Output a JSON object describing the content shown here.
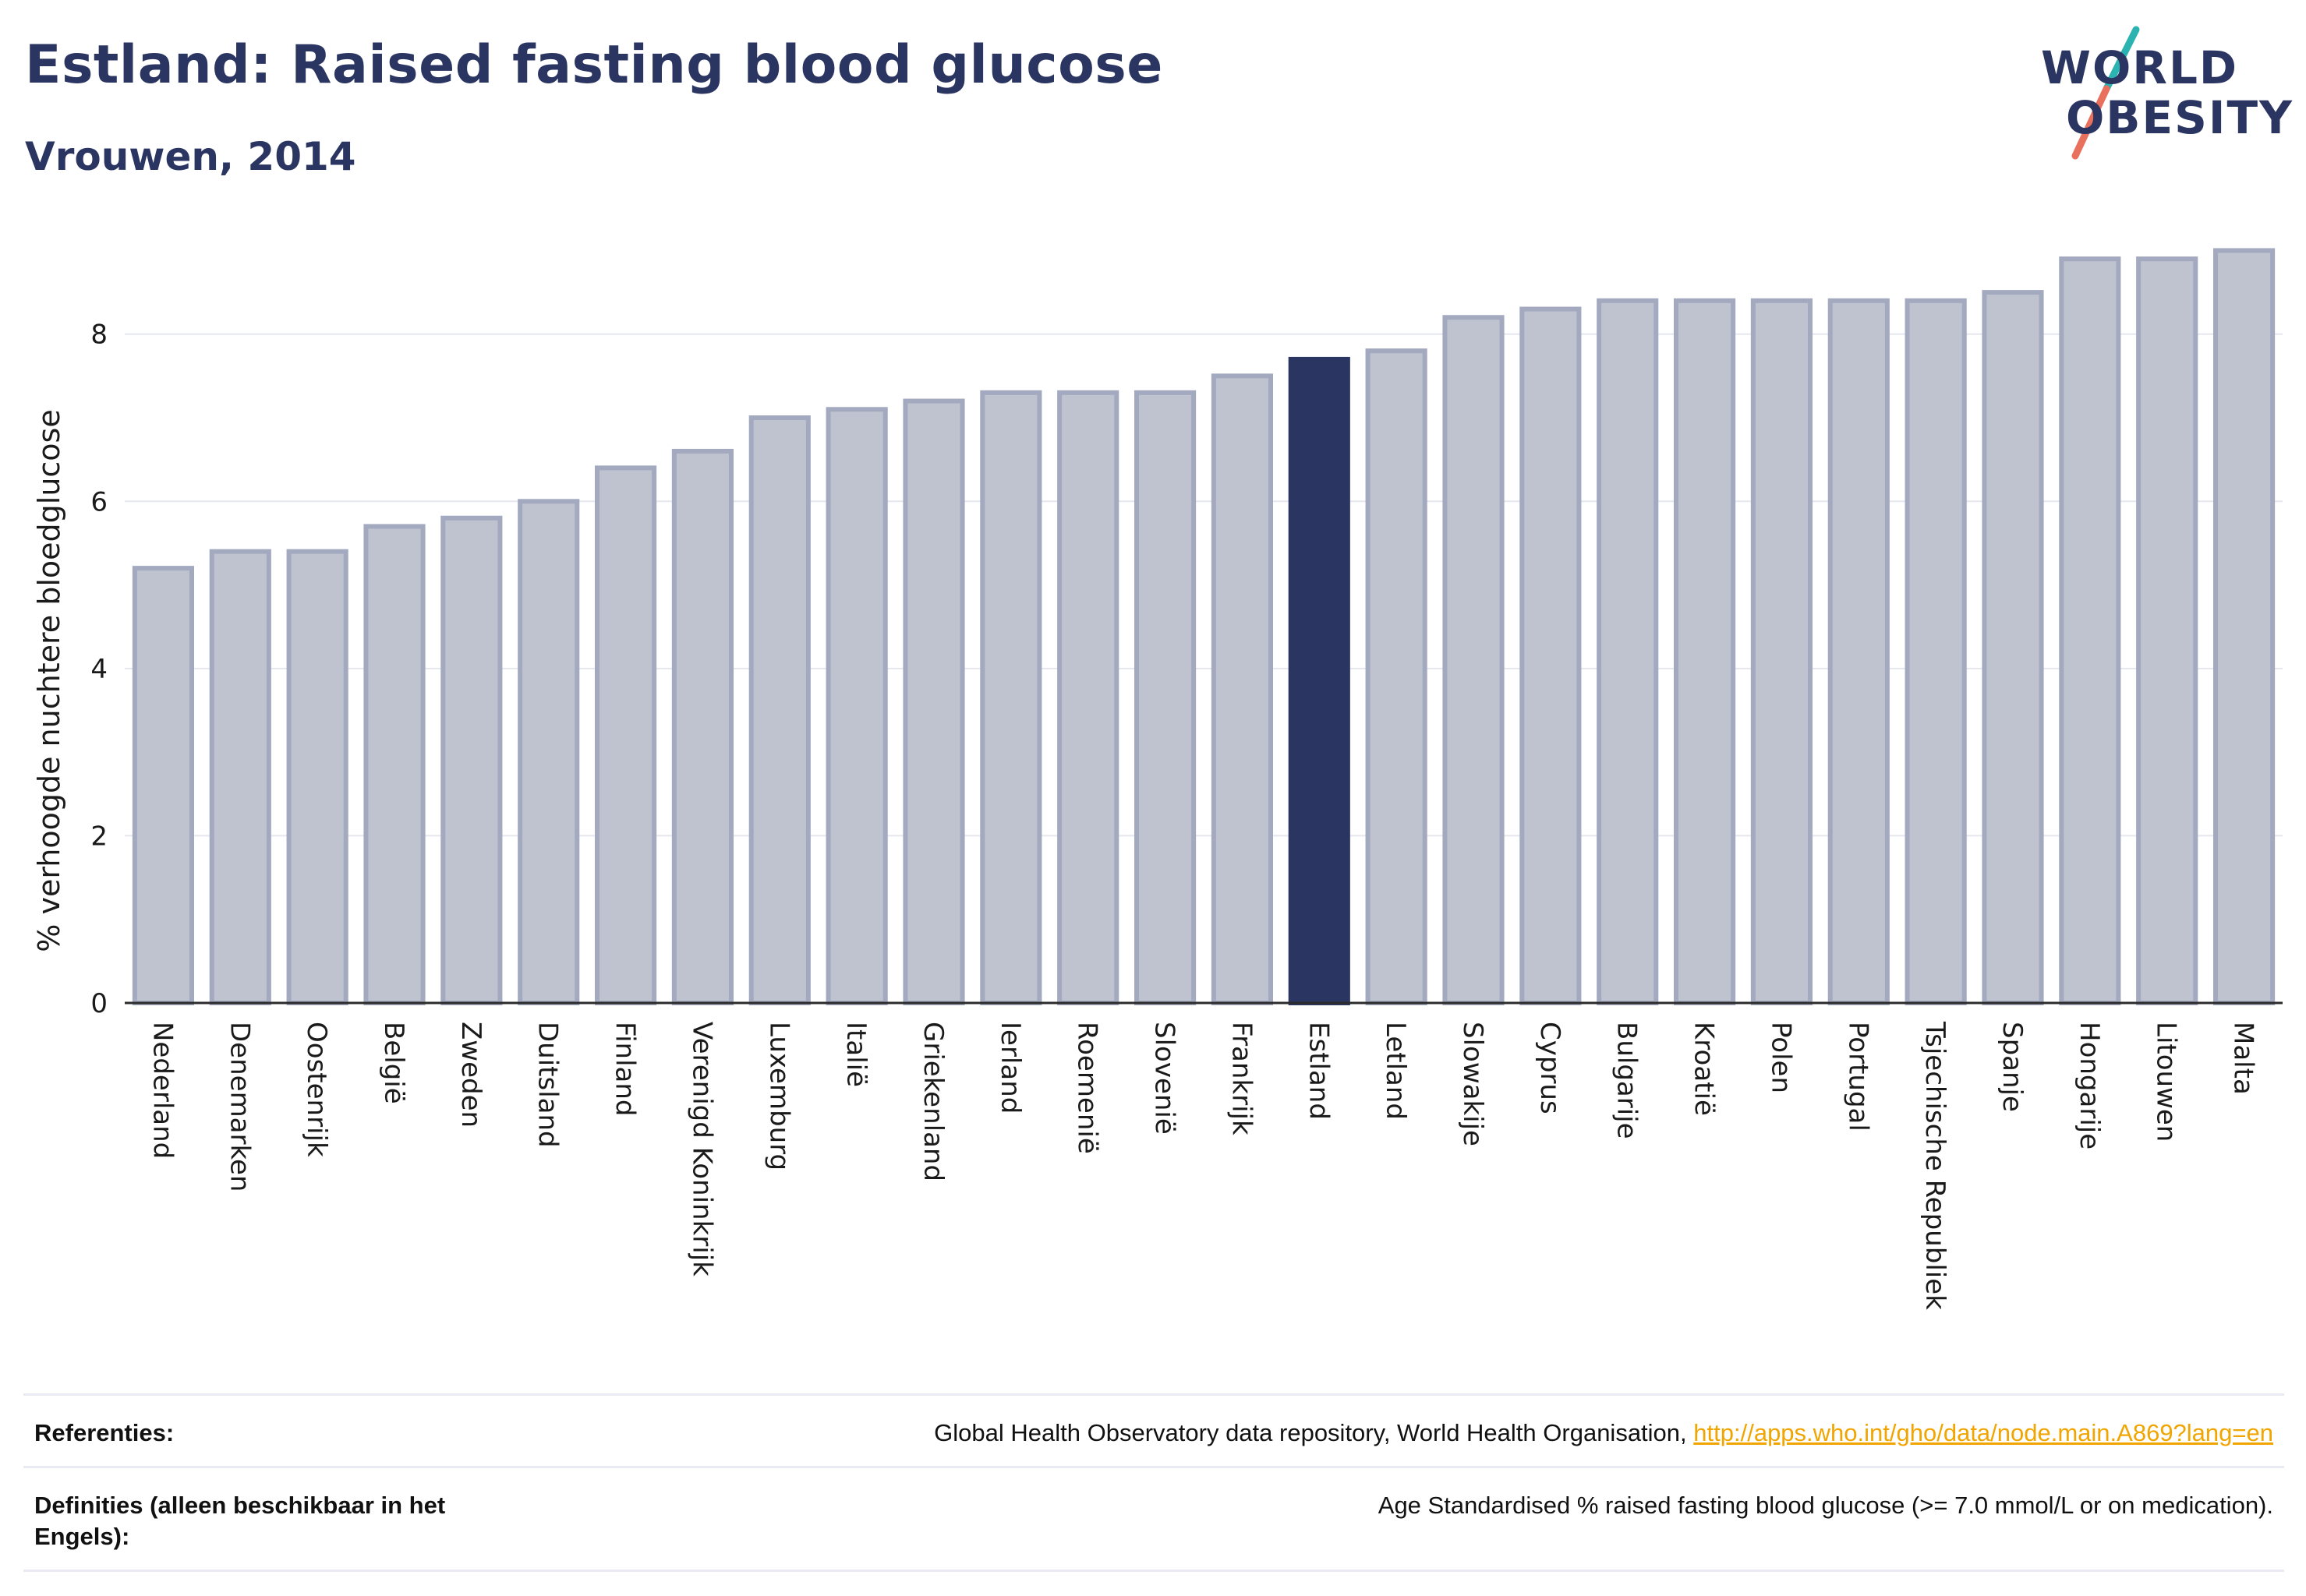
{
  "header": {
    "title": "Estland: Raised fasting blood glucose",
    "subtitle": "Vrouwen, 2014"
  },
  "logo": {
    "line1": "WORLD",
    "line2": "OBESITY"
  },
  "colors": {
    "bar": "#bfc3d0",
    "bar_edge": "#a3a9bf",
    "highlight": "#2b3561",
    "axis_text": "#1a1a1a",
    "grid": "#e6e7ee",
    "logo_teal": "#2bb3b1",
    "logo_coral": "#e8705c"
  },
  "chart_data": {
    "type": "bar",
    "title": "Estland: Raised fasting blood glucose",
    "subtitle": "Vrouwen, 2014",
    "xlabel": "",
    "ylabel": "% verhoogde nuchtere bloedglucose",
    "ylim": [
      0,
      9.2
    ],
    "yticks": [
      0,
      2,
      4,
      6,
      8
    ],
    "grid": true,
    "highlight": "Estland",
    "categories": [
      "Nederland",
      "Denemarken",
      "Oostenrijk",
      "België",
      "Zweden",
      "Duitsland",
      "Finland",
      "Verenigd Koninkrijk",
      "Luxemburg",
      "Italië",
      "Griekenland",
      "Ierland",
      "Roemenië",
      "Slovenië",
      "Frankrijk",
      "Estland",
      "Letland",
      "Slowakije",
      "Cyprus",
      "Bulgarije",
      "Kroatië",
      "Polen",
      "Portugal",
      "Tsjechische Republiek",
      "Spanje",
      "Hongarije",
      "Litouwen",
      "Malta"
    ],
    "values": [
      5.2,
      5.4,
      5.4,
      5.7,
      5.8,
      6.0,
      6.4,
      6.6,
      7.0,
      7.1,
      7.2,
      7.3,
      7.3,
      7.3,
      7.5,
      7.7,
      7.8,
      8.2,
      8.3,
      8.4,
      8.4,
      8.4,
      8.4,
      8.4,
      8.5,
      8.9,
      8.9,
      9.0
    ]
  },
  "footer": {
    "references_label": "Referenties:",
    "references_text": "Global Health Observatory data repository, World Health Organisation,",
    "references_link": "http://apps.who.int/gho/data/node.main.A869?lang=en",
    "definitions_label": "Definities (alleen beschikbaar in het Engels):",
    "definitions_text": "Age Standardised % raised fasting blood glucose (>= 7.0 mmol/L or on medication)."
  }
}
